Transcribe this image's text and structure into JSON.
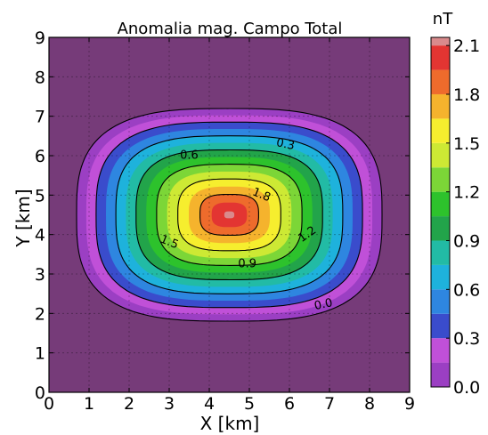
{
  "chart_data": {
    "type": "heatmap",
    "subtype": "filled-contour",
    "title": "Anomalia mag. Campo Total",
    "xlabel": "X [km]",
    "ylabel": "Y [km]",
    "xlim": [
      0,
      9
    ],
    "ylim": [
      0,
      9
    ],
    "x_ticks": [
      "0",
      "1",
      "2",
      "3",
      "4",
      "5",
      "6",
      "7",
      "8",
      "9"
    ],
    "y_ticks": [
      "0",
      "1",
      "2",
      "3",
      "4",
      "5",
      "6",
      "7",
      "8",
      "9"
    ],
    "grid": true,
    "colorbar": {
      "unit": "nT",
      "range": [
        0,
        2.15
      ],
      "tick_values": [
        0.0,
        0.3,
        0.6,
        0.9,
        1.2,
        1.5,
        1.8,
        2.1
      ],
      "tick_labels": [
        "0.0",
        "0.3",
        "0.6",
        "0.9",
        "1.2",
        "1.5",
        "1.8",
        "2.1"
      ],
      "placement": "right"
    },
    "anomaly": {
      "center_x": 4.5,
      "center_y": 4.5,
      "peak": 2.15,
      "background": 0.0
    },
    "levels": [
      {
        "value": -0.1,
        "color": "#763B79"
      },
      {
        "value": 0.0,
        "color": "#9B3FC3"
      },
      {
        "value": 0.15,
        "color": "#C050D8"
      },
      {
        "value": 0.3,
        "color": "#3A4CCC"
      },
      {
        "value": 0.45,
        "color": "#2E86E0"
      },
      {
        "value": 0.6,
        "color": "#1EB2DC"
      },
      {
        "value": 0.75,
        "color": "#22BBA5"
      },
      {
        "value": 0.9,
        "color": "#22A44A"
      },
      {
        "value": 1.05,
        "color": "#2DC22C"
      },
      {
        "value": 1.2,
        "color": "#7CD637"
      },
      {
        "value": 1.35,
        "color": "#CDE934"
      },
      {
        "value": 1.5,
        "color": "#F6EE2E"
      },
      {
        "value": 1.65,
        "color": "#F5B32D"
      },
      {
        "value": 1.8,
        "color": "#EE6B2C"
      },
      {
        "value": 1.95,
        "color": "#E33532"
      },
      {
        "value": 2.1,
        "color": "#D98A8C"
      }
    ],
    "contour_lines": [
      "0.0",
      "0.3",
      "0.6",
      "0.9",
      "1.2",
      "1.5",
      "1.8"
    ]
  }
}
